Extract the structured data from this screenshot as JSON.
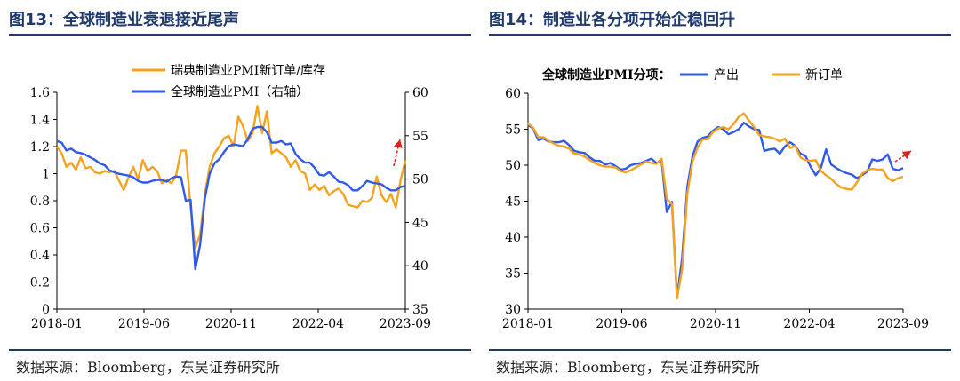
{
  "colors": {
    "orange": "#f4a21f",
    "blue": "#2f5be8",
    "title": "#1f3a6b",
    "arrow": "#e02020"
  },
  "left": {
    "title": "图13：全球制造业衰退接近尾声",
    "source": "数据来源：Bloomberg，东吴证券研究所",
    "chart_data": {
      "type": "line",
      "xlabels": [
        "2018-01",
        "2019-06",
        "2020-11",
        "2022-04",
        "2023-09"
      ],
      "left_axis": {
        "ylim": [
          0,
          1.6
        ],
        "ticks": [
          "0",
          "0.2",
          "0.4",
          "0.6",
          "0.8",
          "1",
          "1.2",
          "1.4",
          "1.6"
        ]
      },
      "right_axis": {
        "ylim": [
          35,
          60
        ],
        "ticks": [
          "35",
          "40",
          "45",
          "50",
          "55",
          "60"
        ]
      },
      "legend_position": "top-center",
      "series": [
        {
          "name": "瑞典制造业PMI新订单/库存",
          "axis": "left",
          "color": "#f4a21f",
          "values": [
            1.2,
            1.15,
            1.05,
            1.08,
            1.03,
            1.12,
            1.04,
            1.05,
            1.01,
            1.0,
            1.02,
            1.01,
            1.02,
            0.95,
            0.88,
            0.97,
            1.05,
            0.96,
            1.1,
            1.02,
            1.05,
            1.02,
            0.93,
            0.95,
            0.93,
            0.99,
            1.17,
            1.17,
            0.75,
            0.45,
            0.55,
            0.85,
            1.05,
            1.15,
            1.2,
            1.26,
            1.28,
            1.2,
            1.42,
            1.35,
            1.24,
            1.3,
            1.5,
            1.3,
            1.46,
            1.15,
            1.18,
            1.15,
            1.12,
            1.05,
            1.1,
            1.02,
            1.0,
            0.88,
            0.92,
            0.88,
            0.91,
            0.84,
            0.87,
            0.89,
            0.85,
            0.77,
            0.76,
            0.75,
            0.8,
            0.79,
            0.82,
            0.98,
            0.84,
            0.79,
            0.85,
            0.75,
            0.95,
            1.1
          ]
        },
        {
          "name": "全球制造业PMI（右轴）",
          "axis": "right",
          "color": "#2f5be8",
          "values": [
            54.4,
            54.2,
            53.3,
            53.5,
            53.1,
            53.0,
            52.8,
            52.5,
            52.2,
            51.8,
            51.6,
            51.0,
            50.8,
            50.6,
            50.5,
            50.4,
            50.2,
            49.8,
            49.6,
            49.6,
            49.8,
            49.9,
            49.9,
            49.7,
            50.1,
            50.3,
            50.2,
            47.5,
            47.6,
            39.6,
            42.4,
            47.8,
            50.6,
            51.8,
            52.3,
            53.1,
            53.8,
            54.0,
            53.9,
            53.8,
            54.6,
            55.8,
            56.0,
            56.0,
            55.4,
            54.2,
            54.2,
            54.4,
            54.0,
            54.1,
            52.9,
            52.3,
            51.9,
            51.9,
            51.3,
            50.5,
            50.4,
            50.8,
            50.3,
            49.7,
            49.6,
            49.3,
            48.7,
            48.7,
            49.2,
            49.8,
            49.6,
            49.5,
            49.4,
            49.0,
            48.7,
            48.7,
            49.1,
            49.2
          ]
        }
      ]
    }
  },
  "right": {
    "title": "图14：制造业各分项开始企稳回升",
    "source": "数据来源：Bloomberg，东吴证券研究所",
    "chart_data": {
      "type": "line",
      "xlabels": [
        "2018-01",
        "2019-06",
        "2020-11",
        "2022-04",
        "2023-09"
      ],
      "ylim": [
        30,
        60
      ],
      "yticks": [
        "30",
        "35",
        "40",
        "45",
        "50",
        "55",
        "60"
      ],
      "legend_title": "全球制造业PMI分项：",
      "legend_position": "top-left",
      "series": [
        {
          "name": "产出",
          "color": "#2f5be8",
          "values": [
            55.6,
            55.1,
            53.5,
            53.7,
            53.3,
            53.2,
            53.2,
            53.4,
            52.8,
            52.0,
            51.8,
            51.7,
            51.1,
            50.6,
            50.6,
            50.1,
            50.3,
            49.9,
            49.4,
            49.5,
            50.0,
            50.2,
            50.3,
            50.6,
            50.9,
            50.3,
            50.6,
            43.5,
            44.9,
            31.6,
            37.1,
            47.0,
            51.2,
            53.3,
            53.8,
            54.0,
            54.8,
            55.3,
            55.0,
            54.3,
            54.6,
            55.0,
            55.9,
            55.4,
            55.0,
            54.9,
            52.0,
            52.2,
            52.3,
            51.6,
            52.6,
            53.2,
            52.7,
            51.6,
            51.3,
            49.8,
            48.6,
            49.6,
            52.2,
            50.1,
            49.6,
            49.2,
            48.9,
            48.7,
            48.2,
            48.6,
            49.1,
            50.8,
            50.6,
            50.8,
            51.5,
            49.5,
            49.3,
            49.6
          ]
        },
        {
          "name": "新订单",
          "color": "#f4a21f",
          "values": [
            55.8,
            55.2,
            53.9,
            53.9,
            53.4,
            53.0,
            52.7,
            52.6,
            52.3,
            51.6,
            51.5,
            51.2,
            50.7,
            50.3,
            50.0,
            49.8,
            49.8,
            49.7,
            49.2,
            49.0,
            49.3,
            49.7,
            50.1,
            50.5,
            50.3,
            50.2,
            50.9,
            45.3,
            44.6,
            31.5,
            35.5,
            46.0,
            50.5,
            52.5,
            53.6,
            53.6,
            54.6,
            55.1,
            55.3,
            55.0,
            55.7,
            56.7,
            57.2,
            56.2,
            55.3,
            54.2,
            54.0,
            53.9,
            53.7,
            53.3,
            53.7,
            52.4,
            52.7,
            51.1,
            50.7,
            50.6,
            50.7,
            49.2,
            48.6,
            48.1,
            47.4,
            46.9,
            46.7,
            46.6,
            47.6,
            48.8,
            49.3,
            49.5,
            49.4,
            49.4,
            48.2,
            47.8,
            48.2,
            48.4
          ]
        }
      ]
    }
  }
}
